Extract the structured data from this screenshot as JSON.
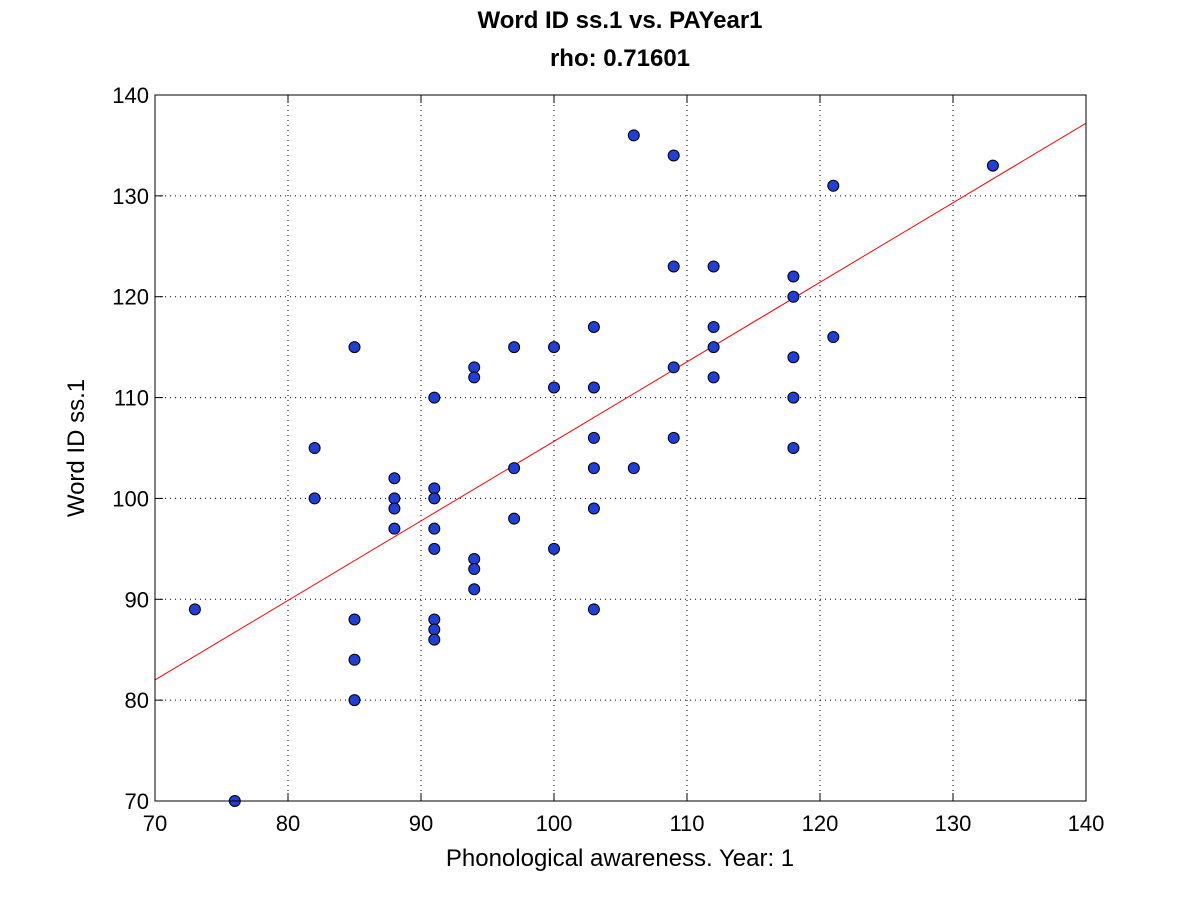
{
  "chart_data": {
    "type": "scatter",
    "title": "Word ID ss.1 vs. PAYear1",
    "subtitle": "rho: 0.71601",
    "xlabel": "Phonological awareness. Year: 1",
    "ylabel": "Word ID ss.1",
    "xlim": [
      70,
      140
    ],
    "ylim": [
      70,
      140
    ],
    "xticks": [
      70,
      80,
      90,
      100,
      110,
      120,
      130,
      140
    ],
    "yticks": [
      70,
      80,
      90,
      100,
      110,
      120,
      130,
      140
    ],
    "grid": true,
    "point_color": "#1f3fd6",
    "fit_line_color": "#ff0000",
    "fit_line": {
      "x": [
        70,
        140
      ],
      "y": [
        82,
        137.2
      ]
    },
    "points": [
      [
        73,
        89
      ],
      [
        76,
        70
      ],
      [
        82,
        105
      ],
      [
        82,
        100
      ],
      [
        85,
        115
      ],
      [
        85,
        88
      ],
      [
        85,
        84
      ],
      [
        85,
        80
      ],
      [
        88,
        102
      ],
      [
        88,
        100
      ],
      [
        88,
        99
      ],
      [
        88,
        97
      ],
      [
        91,
        110
      ],
      [
        91,
        101
      ],
      [
        91,
        100
      ],
      [
        91,
        97
      ],
      [
        91,
        95
      ],
      [
        91,
        88
      ],
      [
        91,
        87
      ],
      [
        91,
        86
      ],
      [
        94,
        113
      ],
      [
        94,
        112
      ],
      [
        94,
        94
      ],
      [
        94,
        93
      ],
      [
        94,
        91
      ],
      [
        97,
        115
      ],
      [
        97,
        103
      ],
      [
        97,
        98
      ],
      [
        100,
        115
      ],
      [
        100,
        111
      ],
      [
        100,
        95
      ],
      [
        103,
        117
      ],
      [
        103,
        111
      ],
      [
        103,
        106
      ],
      [
        103,
        103
      ],
      [
        103,
        99
      ],
      [
        103,
        89
      ],
      [
        106,
        136
      ],
      [
        106,
        103
      ],
      [
        109,
        134
      ],
      [
        109,
        123
      ],
      [
        109,
        113
      ],
      [
        109,
        106
      ],
      [
        112,
        123
      ],
      [
        112,
        117
      ],
      [
        112,
        115
      ],
      [
        112,
        112
      ],
      [
        118,
        122
      ],
      [
        118,
        120
      ],
      [
        118,
        114
      ],
      [
        118,
        110
      ],
      [
        118,
        105
      ],
      [
        121,
        131
      ],
      [
        121,
        116
      ],
      [
        133,
        133
      ]
    ]
  }
}
